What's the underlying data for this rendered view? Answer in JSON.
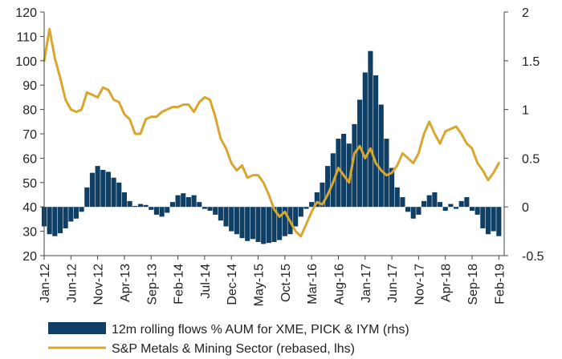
{
  "chart_data": {
    "type": "bar+line",
    "title": "",
    "xlabel": "",
    "ylabel_left": "",
    "ylabel_right": "",
    "x_ticks": [
      "Jan-12",
      "Jun-12",
      "Nov-12",
      "Apr-13",
      "Sep-13",
      "Feb-14",
      "Jul-14",
      "Dec-14",
      "May-15",
      "Oct-15",
      "Mar-16",
      "Aug-16",
      "Jan-17",
      "Jun-17",
      "Nov-17",
      "Apr-18",
      "Sep-18",
      "Feb-19"
    ],
    "y_left": {
      "min": 20,
      "max": 120,
      "ticks": [
        20,
        30,
        40,
        50,
        60,
        70,
        80,
        90,
        100,
        110,
        120
      ]
    },
    "y_right": {
      "min": -0.5,
      "max": 2,
      "tick_labels": [
        "-0.5",
        "0",
        "0.5",
        "1",
        "1.5",
        "2"
      ],
      "tick_values": [
        -0.5,
        0,
        0.5,
        1,
        1.5,
        2
      ]
    },
    "x_range_months": [
      "Jan-12",
      "Mar-19"
    ],
    "legend_placement": "bottom",
    "grid": false,
    "series": [
      {
        "name": "12m rolling flows % AUM for XME, PICK & IYM (rhs)",
        "type": "bar",
        "axis": "right",
        "color": "#103f66",
        "points": [
          [
            "Jan-12",
            -0.2
          ],
          [
            "Feb-12",
            -0.28
          ],
          [
            "Mar-12",
            -0.3
          ],
          [
            "Apr-12",
            -0.27
          ],
          [
            "May-12",
            -0.22
          ],
          [
            "Jun-12",
            -0.15
          ],
          [
            "Jul-12",
            -0.12
          ],
          [
            "Aug-12",
            -0.05
          ],
          [
            "Sep-12",
            0.2
          ],
          [
            "Oct-12",
            0.35
          ],
          [
            "Nov-12",
            0.42
          ],
          [
            "Dec-12",
            0.38
          ],
          [
            "Jan-13",
            0.36
          ],
          [
            "Feb-13",
            0.3
          ],
          [
            "Mar-13",
            0.25
          ],
          [
            "Apr-13",
            0.15
          ],
          [
            "May-13",
            0.06
          ],
          [
            "Jun-13",
            0.01
          ],
          [
            "Jul-13",
            0.03
          ],
          [
            "Aug-13",
            0.02
          ],
          [
            "Sep-13",
            -0.03
          ],
          [
            "Oct-13",
            -0.08
          ],
          [
            "Nov-13",
            -0.1
          ],
          [
            "Dec-13",
            -0.06
          ],
          [
            "Jan-14",
            0.05
          ],
          [
            "Feb-14",
            0.12
          ],
          [
            "Mar-14",
            0.14
          ],
          [
            "Apr-14",
            0.1
          ],
          [
            "May-14",
            0.12
          ],
          [
            "Jun-14",
            0.05
          ],
          [
            "Jul-14",
            -0.02
          ],
          [
            "Aug-14",
            -0.04
          ],
          [
            "Sep-14",
            -0.08
          ],
          [
            "Oct-14",
            -0.14
          ],
          [
            "Nov-14",
            -0.2
          ],
          [
            "Dec-14",
            -0.25
          ],
          [
            "Jan-15",
            -0.28
          ],
          [
            "Feb-15",
            -0.32
          ],
          [
            "Mar-15",
            -0.35
          ],
          [
            "Apr-15",
            -0.33
          ],
          [
            "May-15",
            -0.36
          ],
          [
            "Jun-15",
            -0.38
          ],
          [
            "Jul-15",
            -0.37
          ],
          [
            "Aug-15",
            -0.36
          ],
          [
            "Sep-15",
            -0.34
          ],
          [
            "Oct-15",
            -0.3
          ],
          [
            "Nov-15",
            -0.28
          ],
          [
            "Dec-15",
            -0.2
          ],
          [
            "Jan-16",
            -0.1
          ],
          [
            "Feb-16",
            -0.02
          ],
          [
            "Mar-16",
            0.05
          ],
          [
            "Apr-16",
            0.15
          ],
          [
            "May-16",
            0.25
          ],
          [
            "Jun-16",
            0.42
          ],
          [
            "Jul-16",
            0.55
          ],
          [
            "Aug-16",
            0.7
          ],
          [
            "Sep-16",
            0.75
          ],
          [
            "Oct-16",
            0.65
          ],
          [
            "Nov-16",
            0.85
          ],
          [
            "Dec-16",
            1.1
          ],
          [
            "Jan-17",
            1.38
          ],
          [
            "Feb-17",
            1.6
          ],
          [
            "Mar-17",
            1.35
          ],
          [
            "Apr-17",
            1.05
          ],
          [
            "May-17",
            0.7
          ],
          [
            "Jun-17",
            0.4
          ],
          [
            "Jul-17",
            0.2
          ],
          [
            "Aug-17",
            0.1
          ],
          [
            "Sep-17",
            -0.05
          ],
          [
            "Oct-17",
            -0.12
          ],
          [
            "Nov-17",
            -0.08
          ],
          [
            "Dec-17",
            0.06
          ],
          [
            "Jan-18",
            0.12
          ],
          [
            "Feb-18",
            0.15
          ],
          [
            "Mar-18",
            0.05
          ],
          [
            "Apr-18",
            -0.04
          ],
          [
            "May-18",
            0.03
          ],
          [
            "Jun-18",
            -0.02
          ],
          [
            "Jul-18",
            0.06
          ],
          [
            "Aug-18",
            0.1
          ],
          [
            "Sep-18",
            -0.04
          ],
          [
            "Oct-18",
            -0.08
          ],
          [
            "Nov-18",
            -0.22
          ],
          [
            "Dec-18",
            -0.28
          ],
          [
            "Jan-19",
            -0.25
          ],
          [
            "Feb-19",
            -0.3
          ]
        ]
      },
      {
        "name": "S&P Metals & Mining Sector (rebased, lhs)",
        "type": "line",
        "axis": "left",
        "color": "#d9a62e",
        "points": [
          [
            "Jan-12",
            100
          ],
          [
            "Feb-12",
            113
          ],
          [
            "Mar-12",
            101
          ],
          [
            "Apr-12",
            93
          ],
          [
            "May-12",
            84
          ],
          [
            "Jun-12",
            80
          ],
          [
            "Jul-12",
            79
          ],
          [
            "Aug-12",
            80
          ],
          [
            "Sep-12",
            87
          ],
          [
            "Oct-12",
            86
          ],
          [
            "Nov-12",
            85
          ],
          [
            "Dec-12",
            89
          ],
          [
            "Jan-13",
            88
          ],
          [
            "Feb-13",
            84
          ],
          [
            "Mar-13",
            83
          ],
          [
            "Apr-13",
            78
          ],
          [
            "May-13",
            76
          ],
          [
            "Jun-13",
            70
          ],
          [
            "Jul-13",
            70
          ],
          [
            "Aug-13",
            76
          ],
          [
            "Sep-13",
            77
          ],
          [
            "Oct-13",
            77
          ],
          [
            "Nov-13",
            79
          ],
          [
            "Dec-13",
            80
          ],
          [
            "Jan-14",
            81
          ],
          [
            "Feb-14",
            81
          ],
          [
            "Mar-14",
            82
          ],
          [
            "Apr-14",
            82
          ],
          [
            "May-14",
            79
          ],
          [
            "Jun-14",
            83
          ],
          [
            "Jul-14",
            85
          ],
          [
            "Aug-14",
            84
          ],
          [
            "Sep-14",
            77
          ],
          [
            "Oct-14",
            68
          ],
          [
            "Nov-14",
            64
          ],
          [
            "Dec-14",
            58
          ],
          [
            "Jan-15",
            55
          ],
          [
            "Feb-15",
            57
          ],
          [
            "Mar-15",
            52
          ],
          [
            "Apr-15",
            53
          ],
          [
            "May-15",
            53
          ],
          [
            "Jun-15",
            50
          ],
          [
            "Jul-15",
            45
          ],
          [
            "Aug-15",
            39
          ],
          [
            "Sep-15",
            36
          ],
          [
            "Oct-15",
            38
          ],
          [
            "Nov-15",
            34
          ],
          [
            "Dec-15",
            30
          ],
          [
            "Jan-16",
            28
          ],
          [
            "Feb-16",
            33
          ],
          [
            "Mar-16",
            38
          ],
          [
            "Apr-16",
            42
          ],
          [
            "May-16",
            41
          ],
          [
            "Jun-16",
            45
          ],
          [
            "Jul-16",
            50
          ],
          [
            "Aug-16",
            56
          ],
          [
            "Sep-16",
            53
          ],
          [
            "Oct-16",
            50
          ],
          [
            "Nov-16",
            62
          ],
          [
            "Dec-16",
            65
          ],
          [
            "Jan-17",
            60
          ],
          [
            "Feb-17",
            64
          ],
          [
            "Mar-17",
            58
          ],
          [
            "Apr-17",
            55
          ],
          [
            "May-17",
            53
          ],
          [
            "Jun-17",
            54
          ],
          [
            "Jul-17",
            57
          ],
          [
            "Aug-17",
            62
          ],
          [
            "Sep-17",
            60
          ],
          [
            "Oct-17",
            58
          ],
          [
            "Nov-17",
            62
          ],
          [
            "Dec-17",
            70
          ],
          [
            "Jan-18",
            75
          ],
          [
            "Feb-18",
            70
          ],
          [
            "Mar-18",
            66
          ],
          [
            "Apr-18",
            71
          ],
          [
            "May-18",
            72
          ],
          [
            "Jun-18",
            73
          ],
          [
            "Jul-18",
            70
          ],
          [
            "Aug-18",
            66
          ],
          [
            "Sep-18",
            64
          ],
          [
            "Oct-18",
            58
          ],
          [
            "Nov-18",
            55
          ],
          [
            "Dec-18",
            51
          ],
          [
            "Jan-19",
            54
          ],
          [
            "Feb-19",
            58
          ]
        ]
      }
    ]
  }
}
